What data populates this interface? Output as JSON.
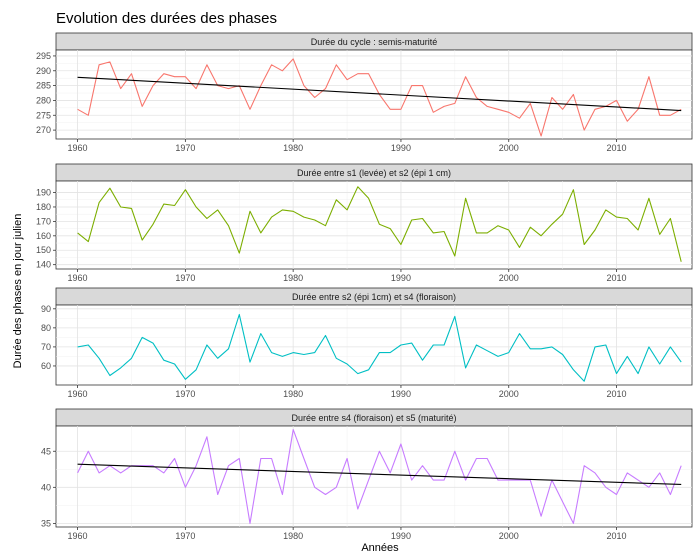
{
  "figure": {
    "title": "Evolution des durées des phases",
    "xlabel": "Années",
    "ylabel": "Durée des phases en jour julien"
  },
  "chart_data": [
    {
      "type": "line",
      "title": "Durée du cycle : semis-maturité",
      "xlim": [
        1958,
        2017
      ],
      "ylim": [
        267,
        297
      ],
      "xticks": [
        1960,
        1970,
        1980,
        1990,
        2000,
        2010
      ],
      "yticks": [
        270,
        275,
        280,
        285,
        290,
        295
      ],
      "series": [
        {
          "color": "#F8766D",
          "x": [
            1960,
            1961,
            1962,
            1963,
            1964,
            1965,
            1966,
            1967,
            1968,
            1969,
            1970,
            1971,
            1972,
            1973,
            1974,
            1975,
            1976,
            1977,
            1978,
            1979,
            1980,
            1981,
            1982,
            1983,
            1984,
            1985,
            1986,
            1987,
            1988,
            1989,
            1990,
            1991,
            1992,
            1993,
            1994,
            1995,
            1996,
            1997,
            1998,
            1999,
            2000,
            2001,
            2002,
            2003,
            2004,
            2005,
            2006,
            2007,
            2008,
            2009,
            2010,
            2011,
            2012,
            2013,
            2014,
            2015,
            2016
          ],
          "y": [
            277,
            275,
            292,
            293,
            284,
            289,
            278,
            285,
            289,
            288,
            288,
            284,
            292,
            285,
            284,
            285,
            277,
            285,
            292,
            290,
            294,
            285,
            281,
            284,
            292,
            287,
            289,
            289,
            282,
            277,
            277,
            285,
            285,
            276,
            278,
            279,
            288,
            281,
            278,
            277,
            276,
            274,
            279,
            268,
            281,
            277,
            282,
            270,
            277,
            278,
            280,
            273,
            277,
            288,
            275,
            275,
            277
          ]
        }
      ],
      "trend": {
        "color": "#000000",
        "x": [
          1960,
          2016
        ],
        "y": [
          287.8,
          276.6
        ]
      }
    },
    {
      "type": "line",
      "title": "Durée entre s1 (levée) et s2 (épi 1 cm)",
      "xlim": [
        1958,
        2017
      ],
      "ylim": [
        137,
        198
      ],
      "xticks": [
        1960,
        1970,
        1980,
        1990,
        2000,
        2010
      ],
      "yticks": [
        140,
        150,
        160,
        170,
        180,
        190
      ],
      "series": [
        {
          "color": "#7CAE00",
          "x": [
            1960,
            1961,
            1962,
            1963,
            1964,
            1965,
            1966,
            1967,
            1968,
            1969,
            1970,
            1971,
            1972,
            1973,
            1974,
            1975,
            1976,
            1977,
            1978,
            1979,
            1980,
            1981,
            1982,
            1983,
            1984,
            1985,
            1986,
            1987,
            1988,
            1989,
            1990,
            1991,
            1992,
            1993,
            1994,
            1995,
            1996,
            1997,
            1998,
            1999,
            2000,
            2001,
            2002,
            2003,
            2004,
            2005,
            2006,
            2007,
            2008,
            2009,
            2010,
            2011,
            2012,
            2013,
            2014,
            2015,
            2016
          ],
          "y": [
            162,
            156,
            183,
            193,
            180,
            179,
            157,
            168,
            182,
            181,
            192,
            180,
            172,
            178,
            167,
            148,
            177,
            162,
            173,
            178,
            177,
            173,
            171,
            167,
            185,
            178,
            194,
            186,
            168,
            165,
            154,
            171,
            172,
            162,
            163,
            146,
            186,
            162,
            162,
            167,
            164,
            152,
            166,
            160,
            168,
            175,
            192,
            154,
            164,
            178,
            173,
            172,
            164,
            186,
            161,
            172,
            142
          ]
        }
      ]
    },
    {
      "type": "line",
      "title": "Durée entre s2 (épi 1cm) et s4 (floraison)",
      "xlim": [
        1958,
        2017
      ],
      "ylim": [
        50,
        92
      ],
      "xticks": [
        1960,
        1970,
        1980,
        1990,
        2000,
        2010
      ],
      "yticks": [
        60,
        70,
        80,
        90
      ],
      "series": [
        {
          "color": "#00BFC4",
          "x": [
            1960,
            1961,
            1962,
            1963,
            1964,
            1965,
            1966,
            1967,
            1968,
            1969,
            1970,
            1971,
            1972,
            1973,
            1974,
            1975,
            1976,
            1977,
            1978,
            1979,
            1980,
            1981,
            1982,
            1983,
            1984,
            1985,
            1986,
            1987,
            1988,
            1989,
            1990,
            1991,
            1992,
            1993,
            1994,
            1995,
            1996,
            1997,
            1998,
            1999,
            2000,
            2001,
            2002,
            2003,
            2004,
            2005,
            2006,
            2007,
            2008,
            2009,
            2010,
            2011,
            2012,
            2013,
            2014,
            2015,
            2016
          ],
          "y": [
            70,
            71,
            64,
            55,
            59,
            64,
            75,
            72,
            63,
            61,
            53,
            58,
            71,
            64,
            69,
            87,
            62,
            77,
            67,
            65,
            67,
            66,
            67,
            76,
            64,
            61,
            56,
            58,
            67,
            67,
            71,
            72,
            63,
            71,
            71,
            86,
            59,
            71,
            68,
            65,
            67,
            77,
            69,
            69,
            70,
            66,
            58,
            52,
            70,
            71,
            56,
            65,
            56,
            70,
            61,
            70,
            62
          ]
        }
      ]
    },
    {
      "type": "line",
      "title": "Durée entre s4 (floraison) et s5 (maturité)",
      "xlim": [
        1958,
        2017
      ],
      "ylim": [
        34.5,
        48.5
      ],
      "xticks": [
        1960,
        1970,
        1980,
        1990,
        2000,
        2010
      ],
      "yticks": [
        35,
        40,
        45
      ],
      "series": [
        {
          "color": "#C77CFF",
          "x": [
            1960,
            1961,
            1962,
            1963,
            1964,
            1965,
            1966,
            1967,
            1968,
            1969,
            1970,
            1971,
            1972,
            1973,
            1974,
            1975,
            1976,
            1977,
            1978,
            1979,
            1980,
            1981,
            1982,
            1983,
            1984,
            1985,
            1986,
            1987,
            1988,
            1989,
            1990,
            1991,
            1992,
            1993,
            1994,
            1995,
            1996,
            1997,
            1998,
            1999,
            2000,
            2001,
            2002,
            2003,
            2004,
            2005,
            2006,
            2007,
            2008,
            2009,
            2010,
            2011,
            2012,
            2013,
            2014,
            2015,
            2016
          ],
          "y": [
            42,
            45,
            42,
            43,
            42,
            43,
            43,
            43,
            42,
            44,
            40,
            43,
            47,
            39,
            43,
            44,
            35,
            44,
            44,
            39,
            48,
            44,
            40,
            39,
            40,
            44,
            37,
            41,
            45,
            42,
            46,
            41,
            43,
            41,
            41,
            45,
            41,
            44,
            44,
            41,
            41,
            41,
            41,
            36,
            41,
            38,
            35,
            43,
            42,
            40,
            39,
            42,
            41,
            40,
            42,
            39,
            43
          ]
        }
      ],
      "trend": {
        "color": "#000000",
        "x": [
          1960,
          2016
        ],
        "y": [
          43.2,
          40.4
        ]
      }
    }
  ]
}
